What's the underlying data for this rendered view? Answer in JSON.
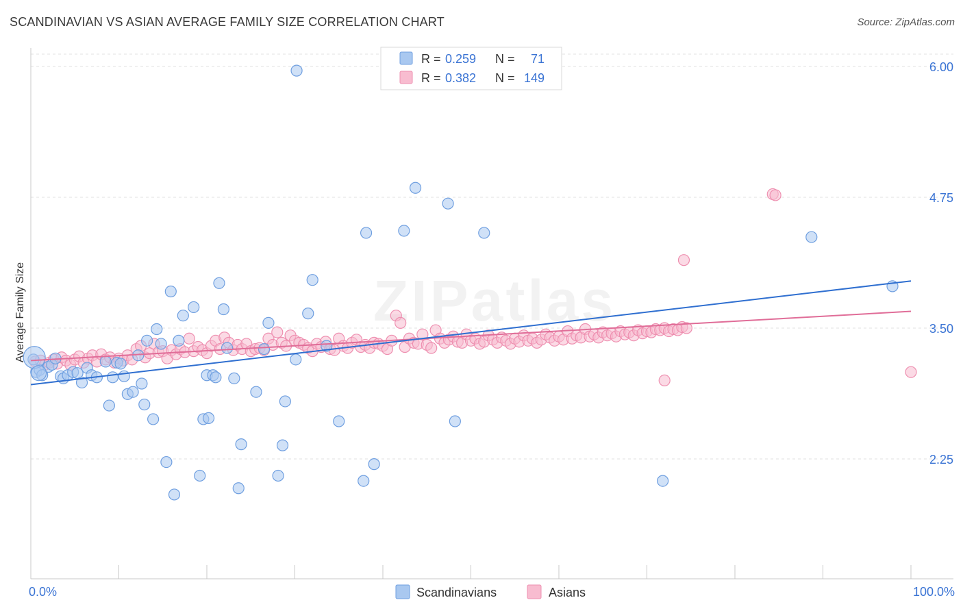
{
  "header": {
    "title": "SCANDINAVIAN VS ASIAN AVERAGE FAMILY SIZE CORRELATION CHART",
    "source": "Source: ZipAtlas.com"
  },
  "watermark": "ZIPatlas",
  "legend_stats": [
    {
      "r_label": "R =",
      "r_value": "0.259",
      "n_label": "N =",
      "n_value": "71"
    },
    {
      "r_label": "R =",
      "r_value": "0.382",
      "n_label": "N =",
      "n_value": "149"
    }
  ],
  "colors": {
    "scandinavians_fill": "#a9c8f0",
    "scandinavians_stroke": "#6f9fe0",
    "scandinavians_line": "#2f6fd0",
    "asians_fill": "#f8bcd0",
    "asians_stroke": "#ee8fb0",
    "asians_line": "#e06d98",
    "axis_label_blue": "#3b74d4",
    "grid": "#e2e2e2"
  },
  "chart_data": {
    "type": "scatter",
    "title": "SCANDINAVIAN VS ASIAN AVERAGE FAMILY SIZE CORRELATION CHART",
    "xlabel": "",
    "ylabel": "Average Family Size",
    "xlim": [
      0,
      100
    ],
    "ylim": [
      1.0,
      6.1
    ],
    "x_tick_labels": [
      "0.0%",
      "100.0%"
    ],
    "y_ticks": [
      2.25,
      3.5,
      4.75,
      6.0
    ],
    "y_tick_labels": [
      "2.25",
      "3.50",
      "4.75",
      "6.00"
    ],
    "grid": true,
    "legend_position": "bottom",
    "series": [
      {
        "name": "Scandinavians",
        "r": 0.259,
        "n": 71,
        "trend": {
          "x": [
            0,
            100
          ],
          "y": [
            2.96,
            3.95
          ]
        },
        "points": [
          [
            0.3,
            3.2
          ],
          [
            0.6,
            3.08
          ],
          [
            1.0,
            3.1
          ],
          [
            1.3,
            3.05
          ],
          [
            2.0,
            3.13
          ],
          [
            2.4,
            3.15
          ],
          [
            2.8,
            3.21
          ],
          [
            3.4,
            3.04
          ],
          [
            3.7,
            3.02
          ],
          [
            4.2,
            3.05
          ],
          [
            4.8,
            3.08
          ],
          [
            5.3,
            3.07
          ],
          [
            5.8,
            2.98
          ],
          [
            6.4,
            3.12
          ],
          [
            6.9,
            3.05
          ],
          [
            7.5,
            3.03
          ],
          [
            8.5,
            3.18
          ],
          [
            8.9,
            2.76
          ],
          [
            9.3,
            3.03
          ],
          [
            9.8,
            3.17
          ],
          [
            10.2,
            3.16
          ],
          [
            10.6,
            3.04
          ],
          [
            11.0,
            2.87
          ],
          [
            11.6,
            2.89
          ],
          [
            12.2,
            3.24
          ],
          [
            12.6,
            2.97
          ],
          [
            12.9,
            2.77
          ],
          [
            13.2,
            3.38
          ],
          [
            13.9,
            2.63
          ],
          [
            14.3,
            3.49
          ],
          [
            14.8,
            3.35
          ],
          [
            15.4,
            2.22
          ],
          [
            15.9,
            3.85
          ],
          [
            16.3,
            1.91
          ],
          [
            16.8,
            3.38
          ],
          [
            17.3,
            3.62
          ],
          [
            18.5,
            3.7
          ],
          [
            19.2,
            2.09
          ],
          [
            19.6,
            2.63
          ],
          [
            20.0,
            3.05
          ],
          [
            20.2,
            2.64
          ],
          [
            20.7,
            3.05
          ],
          [
            21.0,
            3.03
          ],
          [
            21.4,
            3.93
          ],
          [
            21.9,
            3.68
          ],
          [
            22.3,
            3.31
          ],
          [
            23.1,
            3.02
          ],
          [
            23.6,
            1.97
          ],
          [
            23.9,
            2.39
          ],
          [
            25.6,
            2.89
          ],
          [
            26.5,
            3.3
          ],
          [
            27.0,
            3.55
          ],
          [
            28.1,
            2.09
          ],
          [
            28.6,
            2.38
          ],
          [
            28.9,
            2.8
          ],
          [
            30.1,
            3.2
          ],
          [
            31.5,
            3.64
          ],
          [
            32.0,
            3.96
          ],
          [
            33.6,
            3.33
          ],
          [
            35.0,
            2.61
          ],
          [
            37.8,
            2.04
          ],
          [
            38.1,
            4.41
          ],
          [
            39.0,
            2.2
          ],
          [
            42.4,
            4.43
          ],
          [
            43.7,
            4.84
          ],
          [
            47.4,
            4.69
          ],
          [
            48.2,
            2.61
          ],
          [
            51.5,
            4.41
          ],
          [
            71.8,
            2.04
          ],
          [
            88.7,
            4.37
          ],
          [
            97.9,
            3.9
          ]
        ],
        "outliers": [
          [
            30.2,
            5.96
          ]
        ]
      },
      {
        "name": "Asians",
        "r": 0.382,
        "n": 149,
        "trend": {
          "x": [
            0,
            100
          ],
          "y": [
            3.19,
            3.66
          ]
        },
        "points": [
          [
            0.5,
            3.18
          ],
          [
            1.1,
            3.19
          ],
          [
            1.6,
            3.15
          ],
          [
            2.1,
            3.17
          ],
          [
            2.6,
            3.2
          ],
          [
            3.0,
            3.16
          ],
          [
            3.5,
            3.22
          ],
          [
            4.0,
            3.19
          ],
          [
            4.5,
            3.15
          ],
          [
            5.0,
            3.2
          ],
          [
            5.5,
            3.23
          ],
          [
            6.0,
            3.17
          ],
          [
            6.5,
            3.21
          ],
          [
            7.0,
            3.24
          ],
          [
            7.5,
            3.18
          ],
          [
            8.0,
            3.25
          ],
          [
            8.5,
            3.2
          ],
          [
            9.0,
            3.22
          ],
          [
            9.5,
            3.17
          ],
          [
            10.0,
            3.21
          ],
          [
            10.5,
            3.19
          ],
          [
            11.0,
            3.24
          ],
          [
            11.5,
            3.2
          ],
          [
            12.0,
            3.3
          ],
          [
            12.5,
            3.33
          ],
          [
            13.0,
            3.22
          ],
          [
            13.5,
            3.26
          ],
          [
            14.0,
            3.35
          ],
          [
            14.5,
            3.27
          ],
          [
            15.0,
            3.28
          ],
          [
            15.5,
            3.21
          ],
          [
            16.0,
            3.29
          ],
          [
            16.5,
            3.25
          ],
          [
            17.0,
            3.3
          ],
          [
            17.5,
            3.27
          ],
          [
            18.0,
            3.4
          ],
          [
            18.5,
            3.28
          ],
          [
            19.0,
            3.32
          ],
          [
            19.5,
            3.29
          ],
          [
            20.0,
            3.26
          ],
          [
            20.5,
            3.33
          ],
          [
            21.0,
            3.38
          ],
          [
            21.5,
            3.3
          ],
          [
            22.0,
            3.41
          ],
          [
            22.5,
            3.36
          ],
          [
            23.0,
            3.29
          ],
          [
            23.5,
            3.34
          ],
          [
            24.0,
            3.3
          ],
          [
            24.5,
            3.35
          ],
          [
            25.0,
            3.28
          ],
          [
            25.5,
            3.3
          ],
          [
            26.0,
            3.31
          ],
          [
            26.5,
            3.29
          ],
          [
            27.0,
            3.4
          ],
          [
            27.5,
            3.34
          ],
          [
            28.0,
            3.46
          ],
          [
            28.5,
            3.36
          ],
          [
            29.0,
            3.33
          ],
          [
            29.5,
            3.43
          ],
          [
            30.0,
            3.38
          ],
          [
            30.5,
            3.36
          ],
          [
            31.0,
            3.34
          ],
          [
            31.5,
            3.31
          ],
          [
            32.0,
            3.28
          ],
          [
            32.5,
            3.35
          ],
          [
            33.0,
            3.32
          ],
          [
            33.5,
            3.37
          ],
          [
            34.0,
            3.3
          ],
          [
            34.5,
            3.29
          ],
          [
            35.0,
            3.4
          ],
          [
            35.5,
            3.33
          ],
          [
            36.0,
            3.31
          ],
          [
            36.5,
            3.36
          ],
          [
            37.0,
            3.39
          ],
          [
            37.5,
            3.32
          ],
          [
            38.0,
            3.34
          ],
          [
            38.5,
            3.31
          ],
          [
            39.0,
            3.36
          ],
          [
            39.5,
            3.35
          ],
          [
            40.0,
            3.33
          ],
          [
            40.5,
            3.3
          ],
          [
            41.0,
            3.38
          ],
          [
            41.5,
            3.62
          ],
          [
            42.0,
            3.55
          ],
          [
            42.5,
            3.32
          ],
          [
            43.0,
            3.4
          ],
          [
            43.5,
            3.36
          ],
          [
            44.0,
            3.35
          ],
          [
            44.5,
            3.44
          ],
          [
            45.0,
            3.34
          ],
          [
            45.5,
            3.31
          ],
          [
            46.0,
            3.48
          ],
          [
            46.5,
            3.4
          ],
          [
            47.0,
            3.36
          ],
          [
            47.5,
            3.39
          ],
          [
            48.0,
            3.42
          ],
          [
            48.5,
            3.37
          ],
          [
            49.0,
            3.36
          ],
          [
            49.5,
            3.44
          ],
          [
            50.0,
            3.38
          ],
          [
            50.5,
            3.4
          ],
          [
            51.0,
            3.35
          ],
          [
            51.5,
            3.37
          ],
          [
            52.0,
            3.43
          ],
          [
            52.5,
            3.39
          ],
          [
            53.0,
            3.36
          ],
          [
            53.5,
            3.41
          ],
          [
            54.0,
            3.38
          ],
          [
            54.5,
            3.35
          ],
          [
            55.0,
            3.4
          ],
          [
            55.5,
            3.37
          ],
          [
            56.0,
            3.43
          ],
          [
            56.5,
            3.38
          ],
          [
            57.0,
            3.4
          ],
          [
            57.5,
            3.36
          ],
          [
            58.0,
            3.39
          ],
          [
            58.5,
            3.44
          ],
          [
            59.0,
            3.41
          ],
          [
            59.5,
            3.38
          ],
          [
            60.0,
            3.42
          ],
          [
            60.5,
            3.39
          ],
          [
            61.0,
            3.47
          ],
          [
            61.5,
            3.4
          ],
          [
            62.0,
            3.43
          ],
          [
            62.5,
            3.41
          ],
          [
            63.0,
            3.49
          ],
          [
            63.5,
            3.42
          ],
          [
            64.0,
            3.44
          ],
          [
            64.5,
            3.41
          ],
          [
            65.0,
            3.46
          ],
          [
            65.5,
            3.43
          ],
          [
            66.0,
            3.45
          ],
          [
            66.5,
            3.42
          ],
          [
            67.0,
            3.47
          ],
          [
            67.5,
            3.44
          ],
          [
            68.0,
            3.46
          ],
          [
            68.5,
            3.43
          ],
          [
            69.0,
            3.48
          ],
          [
            69.5,
            3.45
          ],
          [
            70.0,
            3.47
          ],
          [
            70.5,
            3.46
          ],
          [
            71.0,
            3.49
          ],
          [
            71.5,
            3.48
          ],
          [
            72.0,
            3.5
          ],
          [
            72.5,
            3.47
          ],
          [
            73.0,
            3.49
          ],
          [
            73.5,
            3.48
          ],
          [
            74.0,
            3.51
          ],
          [
            74.5,
            3.5
          ]
        ],
        "outliers": [
          [
            72.0,
            3.0
          ],
          [
            74.2,
            4.15
          ],
          [
            84.3,
            4.78
          ],
          [
            84.6,
            4.77
          ],
          [
            100,
            3.08
          ]
        ]
      }
    ]
  },
  "bottom_legend": {
    "items": [
      {
        "label": "Scandinavians"
      },
      {
        "label": "Asians"
      }
    ]
  }
}
